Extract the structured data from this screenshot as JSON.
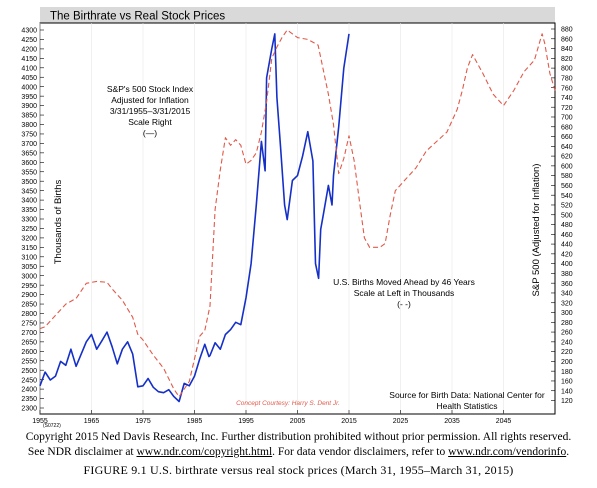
{
  "chart_data": {
    "type": "line",
    "title": "The Birthrate vs Real Stock Prices",
    "y_left": {
      "label": "Thousands of Births",
      "range": [
        2300,
        4300
      ],
      "ticks": [
        "2300",
        "2350",
        "2400",
        "2450",
        "2500",
        "2550",
        "2600",
        "2650",
        "2700",
        "2750",
        "2800",
        "2850",
        "2900",
        "2950",
        "3000",
        "3050",
        "3100",
        "3150",
        "3200",
        "3250",
        "3300",
        "3350",
        "3400",
        "3450",
        "3500",
        "3550",
        "3600",
        "3650",
        "3700",
        "3750",
        "3800",
        "3850",
        "3900",
        "3950",
        "4000",
        "4050",
        "4100",
        "4150",
        "4200",
        "4250",
        "4300"
      ]
    },
    "y_right": {
      "label": "S&P 500 (Adjusted for Inflation)",
      "range": [
        80,
        880
      ],
      "ticks": [
        "120",
        "140",
        "160",
        "180",
        "200",
        "220",
        "240",
        "260",
        "280",
        "300",
        "320",
        "340",
        "360",
        "380",
        "400",
        "420",
        "440",
        "460",
        "480",
        "500",
        "520",
        "540",
        "560",
        "580",
        "600",
        "620",
        "640",
        "660",
        "680",
        "700",
        "720",
        "740",
        "760",
        "780",
        "800",
        "820",
        "840",
        "860",
        "880"
      ]
    },
    "x_axis": {
      "range": [
        1955,
        2055
      ],
      "ticks": [
        "1955",
        "1965",
        "1975",
        "1985",
        "1995",
        "2005",
        "2015",
        "2025",
        "2035",
        "2045"
      ]
    },
    "annotations": {
      "sp_label": [
        "S&P's 500 Stock Index",
        "Adjusted for Inflation",
        "3/31/1955–3/31/2015",
        "Scale Right",
        "(—)"
      ],
      "births_label": [
        "U.S. Births Moved Ahead by 46 Years",
        "Scale at Left in Thousands",
        "(- -)"
      ],
      "courtesy": "Concept Courtesy: Harry S. Dent Jr.",
      "source": [
        "Source for Birth Data: National Center for",
        "Health Statistics"
      ],
      "code": "(S0722)"
    },
    "series": [
      {
        "name": "S&P's 500 Stock Index Adjusted for Inflation",
        "axis": "right",
        "style": "solid",
        "color": "#1530c8",
        "points": [
          [
            1955.0,
            150
          ],
          [
            1956.0,
            178
          ],
          [
            1957.0,
            162
          ],
          [
            1958.0,
            170
          ],
          [
            1959.0,
            200
          ],
          [
            1960.0,
            192
          ],
          [
            1961.0,
            225
          ],
          [
            1962.0,
            190
          ],
          [
            1963.0,
            215
          ],
          [
            1964.0,
            240
          ],
          [
            1965.0,
            255
          ],
          [
            1966.0,
            225
          ],
          [
            1967.0,
            242
          ],
          [
            1968.0,
            260
          ],
          [
            1969.0,
            230
          ],
          [
            1970.0,
            195
          ],
          [
            1971.0,
            225
          ],
          [
            1972.0,
            240
          ],
          [
            1973.0,
            215
          ],
          [
            1974.0,
            148
          ],
          [
            1975.0,
            150
          ],
          [
            1976.0,
            165
          ],
          [
            1977.0,
            147
          ],
          [
            1978.0,
            138
          ],
          [
            1979.0,
            136
          ],
          [
            1980.0,
            142
          ],
          [
            1981.0,
            128
          ],
          [
            1982.0,
            118
          ],
          [
            1983.0,
            155
          ],
          [
            1984.0,
            150
          ],
          [
            1985.0,
            170
          ],
          [
            1986.0,
            205
          ],
          [
            1987.0,
            235
          ],
          [
            1987.8,
            210
          ],
          [
            1988.0,
            212
          ],
          [
            1989.0,
            238
          ],
          [
            1990.0,
            225
          ],
          [
            1991.0,
            255
          ],
          [
            1992.0,
            265
          ],
          [
            1993.0,
            280
          ],
          [
            1994.0,
            275
          ],
          [
            1995.0,
            330
          ],
          [
            1996.0,
            400
          ],
          [
            1997.0,
            520
          ],
          [
            1998.0,
            650
          ],
          [
            1998.7,
            590
          ],
          [
            1999.0,
            780
          ],
          [
            2000.0,
            840
          ],
          [
            2000.6,
            870
          ],
          [
            2001.0,
            740
          ],
          [
            2001.7,
            640
          ],
          [
            2002.5,
            520
          ],
          [
            2003.0,
            490
          ],
          [
            2004.0,
            570
          ],
          [
            2005.0,
            580
          ],
          [
            2006.0,
            620
          ],
          [
            2007.0,
            670
          ],
          [
            2008.0,
            610
          ],
          [
            2008.5,
            400
          ],
          [
            2009.1,
            370
          ],
          [
            2009.5,
            470
          ],
          [
            2010.0,
            500
          ],
          [
            2011.0,
            560
          ],
          [
            2011.7,
            520
          ],
          [
            2012.0,
            580
          ],
          [
            2013.0,
            680
          ],
          [
            2014.0,
            800
          ],
          [
            2015.0,
            870
          ]
        ]
      },
      {
        "name": "U.S. Births Moved Ahead by 46 Years",
        "axis": "left",
        "style": "dashed",
        "color": "#e05a4a",
        "points": [
          [
            1955.0,
            2720
          ],
          [
            1956.0,
            2730
          ],
          [
            1958.0,
            2790
          ],
          [
            1960.0,
            2850
          ],
          [
            1962.0,
            2880
          ],
          [
            1964.0,
            2960
          ],
          [
            1966.0,
            2970
          ],
          [
            1968.0,
            2965
          ],
          [
            1969.0,
            2930
          ],
          [
            1971.0,
            2870
          ],
          [
            1973.0,
            2780
          ],
          [
            1974.0,
            2690
          ],
          [
            1975.0,
            2660
          ],
          [
            1977.0,
            2580
          ],
          [
            1979.0,
            2510
          ],
          [
            1981.0,
            2400
          ],
          [
            1982.0,
            2360
          ],
          [
            1984.0,
            2440
          ],
          [
            1986.0,
            2680
          ],
          [
            1987.0,
            2710
          ],
          [
            1988.0,
            2840
          ],
          [
            1989.0,
            3350
          ],
          [
            1990.0,
            3560
          ],
          [
            1991.0,
            3730
          ],
          [
            1992.0,
            3690
          ],
          [
            1993.0,
            3720
          ],
          [
            1994.0,
            3690
          ],
          [
            1995.0,
            3590
          ],
          [
            1996.0,
            3610
          ],
          [
            1997.0,
            3650
          ],
          [
            1998.0,
            3760
          ],
          [
            1999.0,
            3920
          ],
          [
            2000.0,
            4150
          ],
          [
            2001.0,
            4210
          ],
          [
            2002.0,
            4260
          ],
          [
            2003.0,
            4300
          ],
          [
            2005.0,
            4260
          ],
          [
            2007.0,
            4250
          ],
          [
            2009.0,
            4220
          ],
          [
            2011.0,
            3960
          ],
          [
            2012.0,
            3800
          ],
          [
            2013.0,
            3540
          ],
          [
            2014.0,
            3620
          ],
          [
            2015.0,
            3740
          ],
          [
            2016.0,
            3610
          ],
          [
            2017.0,
            3400
          ],
          [
            2018.0,
            3200
          ],
          [
            2019.0,
            3150
          ],
          [
            2021.0,
            3150
          ],
          [
            2022.0,
            3170
          ],
          [
            2023.0,
            3320
          ],
          [
            2024.0,
            3450
          ],
          [
            2026.0,
            3510
          ],
          [
            2028.0,
            3570
          ],
          [
            2030.0,
            3660
          ],
          [
            2032.0,
            3710
          ],
          [
            2034.0,
            3760
          ],
          [
            2036.0,
            3880
          ],
          [
            2037.0,
            3980
          ],
          [
            2038.0,
            4100
          ],
          [
            2039.0,
            4170
          ],
          [
            2041.0,
            4070
          ],
          [
            2043.0,
            3960
          ],
          [
            2045.0,
            3900
          ],
          [
            2047.0,
            3980
          ],
          [
            2049.0,
            4080
          ],
          [
            2051.0,
            4140
          ],
          [
            2052.5,
            4280
          ],
          [
            2053.0,
            4230
          ],
          [
            2054.0,
            4070
          ],
          [
            2055.0,
            3980
          ]
        ]
      }
    ]
  },
  "footer": {
    "copyright": "Copyright 2015 Ned Davis Research, Inc. Further distribution prohibited without prior permission. All rights reserved.",
    "disclaimer_1": "See NDR disclaimer at",
    "disclaimer_link_1": "www.ndr.com/copyright.html",
    "disclaimer_2": ". For data vendor disclaimers, refer to",
    "disclaimer_link_2": "www.ndr.com/vendorinfo",
    "disclaimer_end": ".",
    "figure_caption": "FIGURE 9.1 U.S. birthrate versus real stock prices (March 31, 1955–March 31, 2015)"
  }
}
